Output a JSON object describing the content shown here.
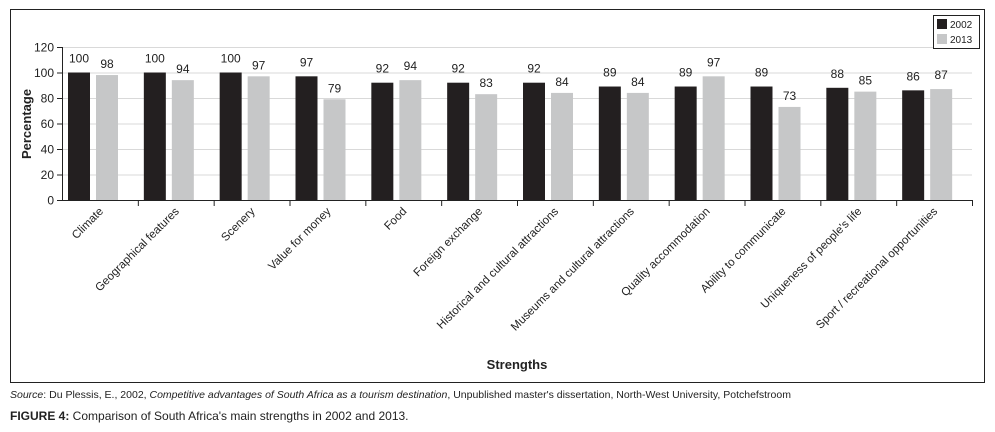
{
  "chart_data": {
    "type": "bar",
    "xlabel": "Strengths",
    "ylabel": "Percentage",
    "ylim": [
      0,
      120
    ],
    "yticks": [
      0,
      20,
      40,
      60,
      80,
      100,
      120
    ],
    "grid": true,
    "legend_position": "top-right",
    "categories": [
      "Climate",
      "Geographical features",
      "Scenery",
      "Value for money",
      "Food",
      "Foreign exchange",
      "Historical and cultural attractions",
      "Museums and cultural attractions",
      "Quality accommodation",
      "Ability to communicate",
      "Uniqueness of people's life",
      "Sport / recreational opportunities"
    ],
    "series": [
      {
        "name": "2002",
        "color": "#231f20",
        "values": [
          100,
          100,
          100,
          97,
          92,
          92,
          92,
          89,
          89,
          89,
          88,
          86
        ]
      },
      {
        "name": "2013",
        "color": "#c6c7c8",
        "values": [
          98,
          94,
          97,
          79,
          94,
          83,
          84,
          84,
          97,
          73,
          85,
          87
        ]
      }
    ]
  },
  "caption": {
    "source_label": "Source",
    "source_author": ": Du Plessis, E., 2002, ",
    "source_title": "Competitive advantages of South Africa as a tourism destination",
    "source_rest": ", Unpublished master's dissertation, North-West University, Potchefstroom",
    "figure_label": "FIGURE 4:",
    "figure_text": " Comparison of South Africa's main strengths in 2002 and 2013."
  }
}
